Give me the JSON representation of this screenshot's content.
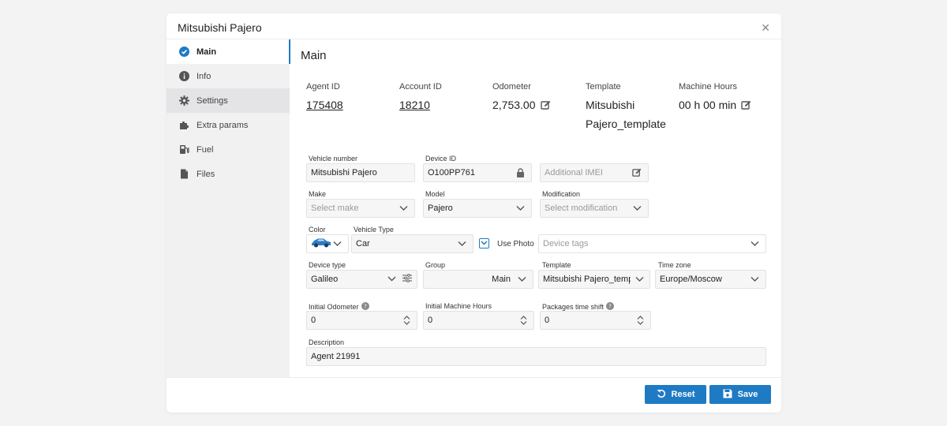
{
  "modal": {
    "title": "Mitsubishi Pajero"
  },
  "sidebar": {
    "items": [
      {
        "label": "Main",
        "icon": "check-circle-icon"
      },
      {
        "label": "Info",
        "icon": "info-icon"
      },
      {
        "label": "Settings",
        "icon": "gear-icon"
      },
      {
        "label": "Extra params",
        "icon": "puzzle-icon"
      },
      {
        "label": "Fuel",
        "icon": "fuel-pump-icon"
      },
      {
        "label": "Files",
        "icon": "file-icon"
      }
    ]
  },
  "main": {
    "title": "Main",
    "stats": {
      "agent_id": {
        "label": "Agent ID",
        "value": "175408"
      },
      "account_id": {
        "label": "Account ID",
        "value": "18210"
      },
      "odometer": {
        "label": "Odometer",
        "value": "2,753.00"
      },
      "template": {
        "label": "Template",
        "value_line1": "Mitsubishi",
        "value_line2": "Pajero_template"
      },
      "machine_hours": {
        "label": "Machine Hours",
        "value": "00 h 00 min"
      }
    },
    "fields": {
      "vehicle_number": {
        "label": "Vehicle number",
        "value": "Mitsubishi Pajero"
      },
      "device_id": {
        "label": "Device ID",
        "value": "О100РР761"
      },
      "additional_imei": {
        "placeholder": "Additional IMEI"
      },
      "make": {
        "label": "Make",
        "placeholder": "Select make"
      },
      "model": {
        "label": "Model",
        "value": "Pajero"
      },
      "modification": {
        "label": "Modification",
        "placeholder": "Select modification"
      },
      "color": {
        "label": "Color"
      },
      "vehicle_type": {
        "label": "Vehicle Type",
        "value": "Car"
      },
      "use_photo": {
        "label": "Use Photo",
        "checked": true
      },
      "device_tags": {
        "placeholder": "Device tags"
      },
      "device_type": {
        "label": "Device type",
        "value": "Galileo"
      },
      "group": {
        "label": "Group",
        "value": "Main"
      },
      "template": {
        "label": "Template",
        "value": "Mitsubishi Pajero_templa"
      },
      "time_zone": {
        "label": "Time zone",
        "value": "Europe/Moscow"
      },
      "initial_odometer": {
        "label": "Initial Odometer",
        "value": "0"
      },
      "initial_machine_hours": {
        "label": "Initial Machine Hours",
        "value": "0"
      },
      "packages_time_shift": {
        "label": "Packages time shift",
        "value": "0"
      },
      "description": {
        "label": "Description",
        "value": "Agent 21991"
      }
    }
  },
  "footer": {
    "reset_label": "Reset",
    "save_label": "Save"
  },
  "colors": {
    "accent": "#1f7ac4",
    "sidebar_bg": "#f1f1f2",
    "car_color": "#2e7bc4"
  }
}
